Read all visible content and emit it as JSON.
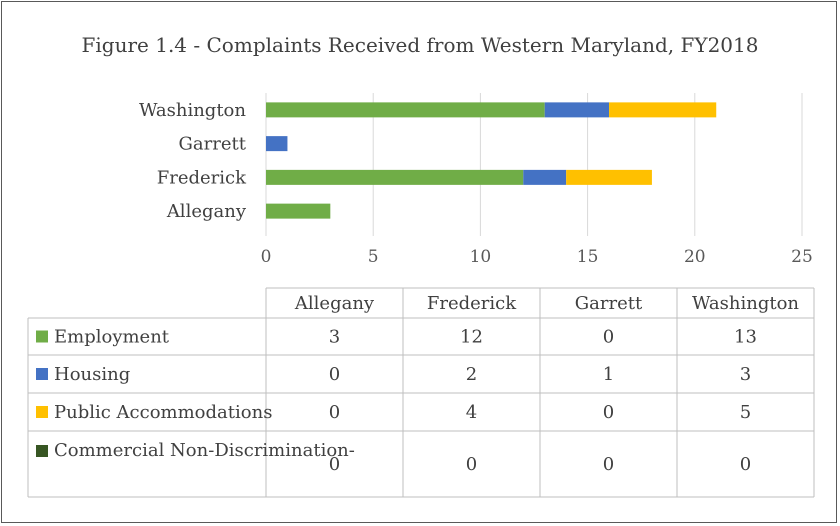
{
  "chart_data": {
    "type": "bar",
    "orientation": "horizontal",
    "stacked": true,
    "title": "Figure 1.4 - Complaints Received from Western Maryland, FY2018",
    "categories": [
      "Allegany",
      "Frederick",
      "Garrett",
      "Washington"
    ],
    "series": [
      {
        "name": "Employment",
        "values": [
          3,
          12,
          0,
          13
        ],
        "color": "#70ad47"
      },
      {
        "name": "Housing",
        "values": [
          0,
          2,
          1,
          3
        ],
        "color": "#4472c4"
      },
      {
        "name": "Public Accommodations",
        "values": [
          0,
          4,
          0,
          5
        ],
        "color": "#ffc000"
      },
      {
        "name": "Commercial Non-Discrimination",
        "values": [
          0,
          0,
          0,
          0
        ],
        "color": "#375623"
      }
    ],
    "xlim": [
      0,
      25
    ],
    "xticks": [
      "0",
      "5",
      "10",
      "15",
      "20",
      "25"
    ],
    "grid": true,
    "legend": "data-table"
  }
}
